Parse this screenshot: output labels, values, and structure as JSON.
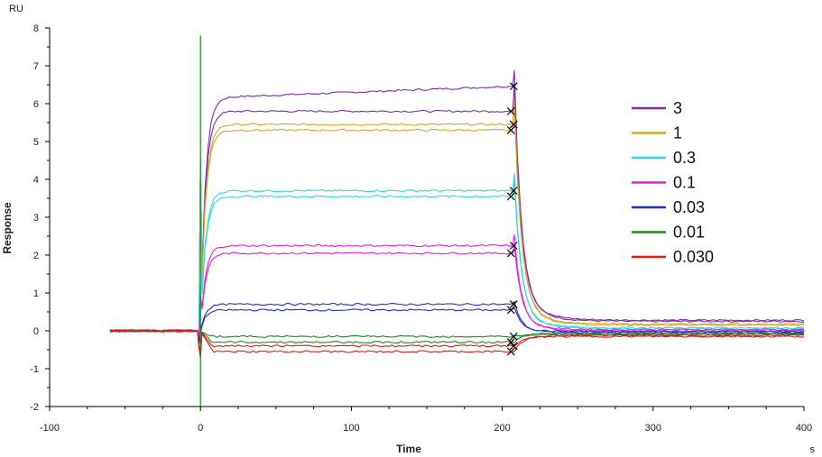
{
  "chart_data": {
    "type": "line",
    "title": "",
    "xlabel": "Time",
    "ylabel": "Response",
    "x_unit": "s",
    "y_unit": "RU",
    "xlim": [
      -100,
      400
    ],
    "ylim": [
      -2,
      8
    ],
    "x_ticks": [
      -100,
      0,
      100,
      200,
      300,
      400
    ],
    "y_ticks": [
      -2,
      -1,
      0,
      1,
      2,
      3,
      4,
      5,
      6,
      7,
      8
    ],
    "grid": false,
    "legend_position": "right",
    "association_start": 0,
    "dissociation_start": 210,
    "series": [
      {
        "name": "3",
        "color": "#7b2fa8",
        "replicates": [
          6.15,
          5.8
        ],
        "dissociation_plateau": 0.25
      },
      {
        "name": "1",
        "color": "#d4a72c",
        "replicates": [
          5.45,
          5.3
        ],
        "dissociation_plateau": 0.15
      },
      {
        "name": "0.3",
        "color": "#2fd8d8",
        "replicates": [
          3.7,
          3.55
        ],
        "dissociation_plateau": 0.05
      },
      {
        "name": "0.1",
        "color": "#e020e0",
        "replicates": [
          2.25,
          2.05
        ],
        "dissociation_plateau": 0.0
      },
      {
        "name": "0.03",
        "color": "#2030d0",
        "replicates": [
          0.7,
          0.55
        ],
        "dissociation_plateau": -0.05
      },
      {
        "name": "0.01",
        "color": "#1a8a1a",
        "replicates": [
          -0.15,
          -0.3
        ],
        "dissociation_plateau": -0.1
      },
      {
        "name": "0.030",
        "color": "#e01818",
        "replicates": [
          -0.4,
          -0.55
        ],
        "dissociation_plateau": -0.15
      }
    ]
  }
}
